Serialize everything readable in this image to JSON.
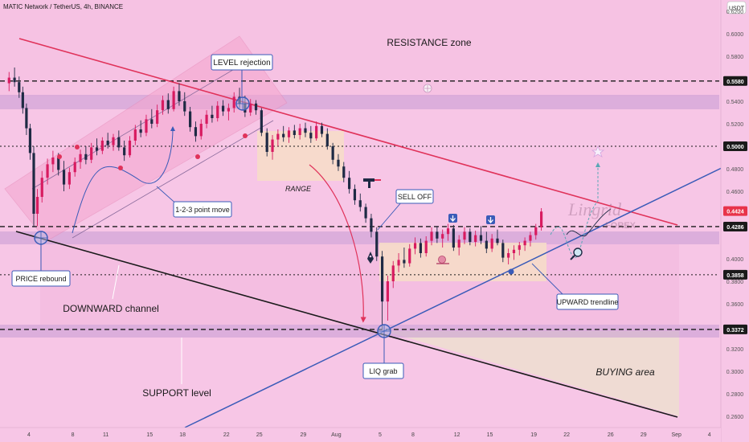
{
  "header": {
    "title": "MATIC Network / TetherUS, 4h, BINANCE"
  },
  "currency_badge": "USDT",
  "chart_data": {
    "type": "candlestick",
    "title": "MATIC Network / TetherUS, 4h, BINANCE",
    "ylim": [
      0.25,
      0.63
    ],
    "y_ticks": [
      {
        "value": 0.62,
        "label": "0.6200"
      },
      {
        "value": 0.6,
        "label": "0.6000"
      },
      {
        "value": 0.58,
        "label": "0.5800"
      },
      {
        "value": 0.54,
        "label": "0.5400"
      },
      {
        "value": 0.52,
        "label": "0.5200"
      },
      {
        "value": 0.48,
        "label": "0.4800"
      },
      {
        "value": 0.46,
        "label": "0.4600"
      },
      {
        "value": 0.4,
        "label": "0.4000"
      },
      {
        "value": 0.38,
        "label": "0.3800"
      },
      {
        "value": 0.36,
        "label": "0.3600"
      },
      {
        "value": 0.34,
        "label": "0.3400"
      },
      {
        "value": 0.32,
        "label": "0.3200"
      },
      {
        "value": 0.3,
        "label": "0.3000"
      },
      {
        "value": 0.28,
        "label": "0.2800"
      },
      {
        "value": 0.26,
        "label": "0.2600"
      }
    ],
    "price_tags": [
      {
        "value": 0.558,
        "label": "0.5580",
        "color": "#1a1a1a"
      },
      {
        "value": 0.5,
        "label": "0.5000",
        "color": "#1a1a1a"
      },
      {
        "value": 0.4424,
        "label": "0.4424",
        "color": "#e8334a"
      },
      {
        "value": 0.4286,
        "label": "0.4286",
        "color": "#1a1a1a"
      },
      {
        "value": 0.3858,
        "label": "0.3858",
        "color": "#1a1a1a"
      },
      {
        "value": 0.3372,
        "label": "0.3372",
        "color": "#1a1a1a"
      }
    ],
    "x_ticks": [
      {
        "label": "4",
        "date": "Jul 4"
      },
      {
        "label": "8",
        "date": "Jul 8"
      },
      {
        "label": "11",
        "date": "Jul 11"
      },
      {
        "label": "15",
        "date": "Jul 15"
      },
      {
        "label": "18",
        "date": "Jul 18"
      },
      {
        "label": "22",
        "date": "Jul 22"
      },
      {
        "label": "25",
        "date": "Jul 25"
      },
      {
        "label": "29",
        "date": "Jul 29"
      },
      {
        "label": "Aug",
        "date": "Aug 1"
      },
      {
        "label": "5",
        "date": "Aug 5"
      },
      {
        "label": "8",
        "date": "Aug 8"
      },
      {
        "label": "12",
        "date": "Aug 12"
      },
      {
        "label": "15",
        "date": "Aug 15"
      },
      {
        "label": "19",
        "date": "Aug 19"
      },
      {
        "label": "22",
        "date": "Aug 22"
      },
      {
        "label": "26",
        "date": "Aug 26"
      },
      {
        "label": "29",
        "date": "Aug 29"
      },
      {
        "label": "Sep",
        "date": "Sep 1"
      },
      {
        "label": "4",
        "date": "Sep 4"
      }
    ],
    "horizontal_levels": [
      {
        "name": "resistance-level",
        "value": 0.558,
        "style": "dashed"
      },
      {
        "name": "target-level",
        "value": 0.5,
        "style": "dotted"
      },
      {
        "name": "breakout-level",
        "value": 0.4286,
        "style": "dashed"
      },
      {
        "name": "range-low-level",
        "value": 0.3858,
        "style": "dotted"
      },
      {
        "name": "support-level",
        "value": 0.3372,
        "style": "dashed"
      }
    ],
    "candles": [
      {
        "x": "Jul 2",
        "o": 0.556,
        "h": 0.566,
        "l": 0.549,
        "c": 0.561
      },
      {
        "x": "Jul 2",
        "o": 0.561,
        "h": 0.57,
        "l": 0.553,
        "c": 0.557
      },
      {
        "x": "Jul 3",
        "o": 0.557,
        "h": 0.562,
        "l": 0.543,
        "c": 0.548
      },
      {
        "x": "Jul 3",
        "o": 0.548,
        "h": 0.553,
        "l": 0.529,
        "c": 0.534
      },
      {
        "x": "Jul 3",
        "o": 0.534,
        "h": 0.538,
        "l": 0.51,
        "c": 0.516
      },
      {
        "x": "Jul 4",
        "o": 0.516,
        "h": 0.52,
        "l": 0.488,
        "c": 0.494
      },
      {
        "x": "Jul 4",
        "o": 0.494,
        "h": 0.5,
        "l": 0.428,
        "c": 0.44
      },
      {
        "x": "Jul 4",
        "o": 0.44,
        "h": 0.462,
        "l": 0.429,
        "c": 0.455
      },
      {
        "x": "Jul 5",
        "o": 0.455,
        "h": 0.478,
        "l": 0.45,
        "c": 0.472
      },
      {
        "x": "Jul 5",
        "o": 0.472,
        "h": 0.489,
        "l": 0.466,
        "c": 0.484
      },
      {
        "x": "Jul 6",
        "o": 0.484,
        "h": 0.496,
        "l": 0.477,
        "c": 0.49
      },
      {
        "x": "Jul 6",
        "o": 0.49,
        "h": 0.494,
        "l": 0.474,
        "c": 0.479
      },
      {
        "x": "Jul 7",
        "o": 0.479,
        "h": 0.487,
        "l": 0.46,
        "c": 0.466
      },
      {
        "x": "Jul 7",
        "o": 0.466,
        "h": 0.481,
        "l": 0.462,
        "c": 0.477
      },
      {
        "x": "Jul 8",
        "o": 0.477,
        "h": 0.49,
        "l": 0.473,
        "c": 0.486
      },
      {
        "x": "Jul 8",
        "o": 0.486,
        "h": 0.497,
        "l": 0.48,
        "c": 0.493
      },
      {
        "x": "Jul 9",
        "o": 0.493,
        "h": 0.5,
        "l": 0.484,
        "c": 0.488
      },
      {
        "x": "Jul 9",
        "o": 0.488,
        "h": 0.503,
        "l": 0.485,
        "c": 0.499
      },
      {
        "x": "Jul 10",
        "o": 0.499,
        "h": 0.507,
        "l": 0.492,
        "c": 0.496
      },
      {
        "x": "Jul 10",
        "o": 0.496,
        "h": 0.508,
        "l": 0.493,
        "c": 0.505
      },
      {
        "x": "Jul 11",
        "o": 0.505,
        "h": 0.512,
        "l": 0.498,
        "c": 0.501
      },
      {
        "x": "Jul 11",
        "o": 0.501,
        "h": 0.511,
        "l": 0.496,
        "c": 0.508
      },
      {
        "x": "Jul 12",
        "o": 0.508,
        "h": 0.514,
        "l": 0.496,
        "c": 0.499
      },
      {
        "x": "Jul 12",
        "o": 0.499,
        "h": 0.505,
        "l": 0.487,
        "c": 0.492
      },
      {
        "x": "Jul 13",
        "o": 0.492,
        "h": 0.509,
        "l": 0.49,
        "c": 0.505
      },
      {
        "x": "Jul 13",
        "o": 0.505,
        "h": 0.519,
        "l": 0.501,
        "c": 0.515
      },
      {
        "x": "Jul 14",
        "o": 0.515,
        "h": 0.523,
        "l": 0.508,
        "c": 0.512
      },
      {
        "x": "Jul 14",
        "o": 0.512,
        "h": 0.528,
        "l": 0.509,
        "c": 0.524
      },
      {
        "x": "Jul 15",
        "o": 0.524,
        "h": 0.533,
        "l": 0.516,
        "c": 0.52
      },
      {
        "x": "Jul 15",
        "o": 0.52,
        "h": 0.537,
        "l": 0.517,
        "c": 0.532
      },
      {
        "x": "Jul 16",
        "o": 0.532,
        "h": 0.545,
        "l": 0.528,
        "c": 0.541
      },
      {
        "x": "Jul 16",
        "o": 0.541,
        "h": 0.547,
        "l": 0.529,
        "c": 0.533
      },
      {
        "x": "Jul 17",
        "o": 0.533,
        "h": 0.553,
        "l": 0.531,
        "c": 0.549
      },
      {
        "x": "Jul 17",
        "o": 0.549,
        "h": 0.556,
        "l": 0.536,
        "c": 0.54
      },
      {
        "x": "Jul 18",
        "o": 0.54,
        "h": 0.548,
        "l": 0.527,
        "c": 0.531
      },
      {
        "x": "Jul 18",
        "o": 0.531,
        "h": 0.535,
        "l": 0.513,
        "c": 0.517
      },
      {
        "x": "Jul 19",
        "o": 0.517,
        "h": 0.522,
        "l": 0.504,
        "c": 0.509
      },
      {
        "x": "Jul 19",
        "o": 0.509,
        "h": 0.524,
        "l": 0.506,
        "c": 0.52
      },
      {
        "x": "Jul 20",
        "o": 0.52,
        "h": 0.532,
        "l": 0.516,
        "c": 0.528
      },
      {
        "x": "Jul 20",
        "o": 0.528,
        "h": 0.536,
        "l": 0.521,
        "c": 0.525
      },
      {
        "x": "Jul 21",
        "o": 0.525,
        "h": 0.54,
        "l": 0.522,
        "c": 0.536
      },
      {
        "x": "Jul 21",
        "o": 0.536,
        "h": 0.541,
        "l": 0.527,
        "c": 0.531
      },
      {
        "x": "Jul 22",
        "o": 0.531,
        "h": 0.538,
        "l": 0.523,
        "c": 0.534
      },
      {
        "x": "Jul 22",
        "o": 0.534,
        "h": 0.548,
        "l": 0.53,
        "c": 0.544
      },
      {
        "x": "Jul 23",
        "o": 0.544,
        "h": 0.552,
        "l": 0.534,
        "c": 0.538
      },
      {
        "x": "Jul 23",
        "o": 0.538,
        "h": 0.545,
        "l": 0.526,
        "c": 0.53
      },
      {
        "x": "Jul 24",
        "o": 0.53,
        "h": 0.542,
        "l": 0.527,
        "c": 0.538
      },
      {
        "x": "Jul 24",
        "o": 0.538,
        "h": 0.541,
        "l": 0.528,
        "c": 0.532
      },
      {
        "x": "Jul 25",
        "o": 0.532,
        "h": 0.534,
        "l": 0.509,
        "c": 0.512
      },
      {
        "x": "Jul 25",
        "o": 0.512,
        "h": 0.516,
        "l": 0.491,
        "c": 0.495
      },
      {
        "x": "Jul 26",
        "o": 0.495,
        "h": 0.51,
        "l": 0.488,
        "c": 0.506
      },
      {
        "x": "Jul 26",
        "o": 0.506,
        "h": 0.515,
        "l": 0.5,
        "c": 0.511
      },
      {
        "x": "Jul 27",
        "o": 0.511,
        "h": 0.518,
        "l": 0.504,
        "c": 0.508
      },
      {
        "x": "Jul 27",
        "o": 0.508,
        "h": 0.517,
        "l": 0.503,
        "c": 0.514
      },
      {
        "x": "Jul 28",
        "o": 0.514,
        "h": 0.519,
        "l": 0.507,
        "c": 0.51
      },
      {
        "x": "Jul 28",
        "o": 0.51,
        "h": 0.52,
        "l": 0.506,
        "c": 0.516
      },
      {
        "x": "Jul 29",
        "o": 0.516,
        "h": 0.521,
        "l": 0.508,
        "c": 0.512
      },
      {
        "x": "Jul 29",
        "o": 0.512,
        "h": 0.518,
        "l": 0.503,
        "c": 0.507
      },
      {
        "x": "Jul 30",
        "o": 0.507,
        "h": 0.522,
        "l": 0.505,
        "c": 0.518
      },
      {
        "x": "Jul 30",
        "o": 0.518,
        "h": 0.521,
        "l": 0.508,
        "c": 0.511
      },
      {
        "x": "Jul 31",
        "o": 0.511,
        "h": 0.516,
        "l": 0.497,
        "c": 0.5
      },
      {
        "x": "Jul 31",
        "o": 0.5,
        "h": 0.503,
        "l": 0.484,
        "c": 0.488
      },
      {
        "x": "Aug 1",
        "o": 0.488,
        "h": 0.493,
        "l": 0.478,
        "c": 0.482
      },
      {
        "x": "Aug 1",
        "o": 0.482,
        "h": 0.486,
        "l": 0.468,
        "c": 0.472
      },
      {
        "x": "Aug 2",
        "o": 0.472,
        "h": 0.478,
        "l": 0.458,
        "c": 0.462
      },
      {
        "x": "Aug 2",
        "o": 0.462,
        "h": 0.466,
        "l": 0.448,
        "c": 0.452
      },
      {
        "x": "Aug 3",
        "o": 0.452,
        "h": 0.458,
        "l": 0.442,
        "c": 0.446
      },
      {
        "x": "Aug 3",
        "o": 0.446,
        "h": 0.449,
        "l": 0.432,
        "c": 0.436
      },
      {
        "x": "Aug 4",
        "o": 0.436,
        "h": 0.44,
        "l": 0.419,
        "c": 0.424
      },
      {
        "x": "Aug 4",
        "o": 0.424,
        "h": 0.428,
        "l": 0.398,
        "c": 0.402
      },
      {
        "x": "Aug 5",
        "o": 0.402,
        "h": 0.407,
        "l": 0.337,
        "c": 0.362
      },
      {
        "x": "Aug 5",
        "o": 0.362,
        "h": 0.385,
        "l": 0.345,
        "c": 0.38
      },
      {
        "x": "Aug 6",
        "o": 0.38,
        "h": 0.398,
        "l": 0.374,
        "c": 0.394
      },
      {
        "x": "Aug 6",
        "o": 0.394,
        "h": 0.405,
        "l": 0.388,
        "c": 0.399
      },
      {
        "x": "Aug 7",
        "o": 0.399,
        "h": 0.41,
        "l": 0.392,
        "c": 0.396
      },
      {
        "x": "Aug 7",
        "o": 0.396,
        "h": 0.413,
        "l": 0.393,
        "c": 0.409
      },
      {
        "x": "Aug 8",
        "o": 0.409,
        "h": 0.419,
        "l": 0.404,
        "c": 0.414
      },
      {
        "x": "Aug 8",
        "o": 0.414,
        "h": 0.418,
        "l": 0.401,
        "c": 0.405
      },
      {
        "x": "Aug 9",
        "o": 0.405,
        "h": 0.42,
        "l": 0.402,
        "c": 0.416
      },
      {
        "x": "Aug 9",
        "o": 0.416,
        "h": 0.428,
        "l": 0.412,
        "c": 0.424
      },
      {
        "x": "Aug 10",
        "o": 0.424,
        "h": 0.429,
        "l": 0.414,
        "c": 0.418
      },
      {
        "x": "Aug 10",
        "o": 0.418,
        "h": 0.426,
        "l": 0.41,
        "c": 0.422
      },
      {
        "x": "Aug 11",
        "o": 0.422,
        "h": 0.431,
        "l": 0.416,
        "c": 0.427
      },
      {
        "x": "Aug 11",
        "o": 0.427,
        "h": 0.43,
        "l": 0.407,
        "c": 0.41
      },
      {
        "x": "Aug 12",
        "o": 0.41,
        "h": 0.421,
        "l": 0.403,
        "c": 0.417
      },
      {
        "x": "Aug 12",
        "o": 0.417,
        "h": 0.428,
        "l": 0.413,
        "c": 0.424
      },
      {
        "x": "Aug 13",
        "o": 0.424,
        "h": 0.427,
        "l": 0.412,
        "c": 0.415
      },
      {
        "x": "Aug 13",
        "o": 0.415,
        "h": 0.425,
        "l": 0.411,
        "c": 0.421
      },
      {
        "x": "Aug 14",
        "o": 0.421,
        "h": 0.429,
        "l": 0.413,
        "c": 0.416
      },
      {
        "x": "Aug 14",
        "o": 0.416,
        "h": 0.424,
        "l": 0.405,
        "c": 0.409
      },
      {
        "x": "Aug 15",
        "o": 0.409,
        "h": 0.422,
        "l": 0.406,
        "c": 0.418
      },
      {
        "x": "Aug 15",
        "o": 0.418,
        "h": 0.426,
        "l": 0.412,
        "c": 0.414
      },
      {
        "x": "Aug 16",
        "o": 0.414,
        "h": 0.417,
        "l": 0.397,
        "c": 0.401
      },
      {
        "x": "Aug 16",
        "o": 0.401,
        "h": 0.409,
        "l": 0.395,
        "c": 0.405
      },
      {
        "x": "Aug 17",
        "o": 0.405,
        "h": 0.412,
        "l": 0.399,
        "c": 0.408
      },
      {
        "x": "Aug 17",
        "o": 0.408,
        "h": 0.415,
        "l": 0.403,
        "c": 0.412
      },
      {
        "x": "Aug 18",
        "o": 0.412,
        "h": 0.419,
        "l": 0.407,
        "c": 0.416
      },
      {
        "x": "Aug 18",
        "o": 0.416,
        "h": 0.424,
        "l": 0.411,
        "c": 0.421
      },
      {
        "x": "Aug 19",
        "o": 0.421,
        "h": 0.431,
        "l": 0.417,
        "c": 0.428
      },
      {
        "x": "Aug 19",
        "o": 0.428,
        "h": 0.445,
        "l": 0.425,
        "c": 0.442
      }
    ]
  },
  "annotations": {
    "resistance_zone": "RESISTANCE zone",
    "level_rejection": "LEVEL rejection",
    "one_two_three": "1-2-3 point move",
    "range": "RANGE",
    "sell_off": "SELL OFF",
    "price_rebound": "PRICE rebound",
    "downward_channel": "DOWNWARD channel",
    "upward_trendline": "UPWARD trendline",
    "support_level": "SUPPORT level",
    "liq_grab": "LIQ grab",
    "buying_area": "BUYING area"
  },
  "watermark": {
    "line1": "Lingrid",
    "line2": "FOREX"
  },
  "colors": {
    "background": "#f7c6e6",
    "candle_up": "#d81b60",
    "candle_down": "#1e2a44",
    "zone_band": "#c79ad4",
    "range_box": "#f6dcc9",
    "resistance_line": "#e0325a",
    "trendline_blue": "#3a5bb8",
    "price_tag_current": "#e8334a"
  }
}
